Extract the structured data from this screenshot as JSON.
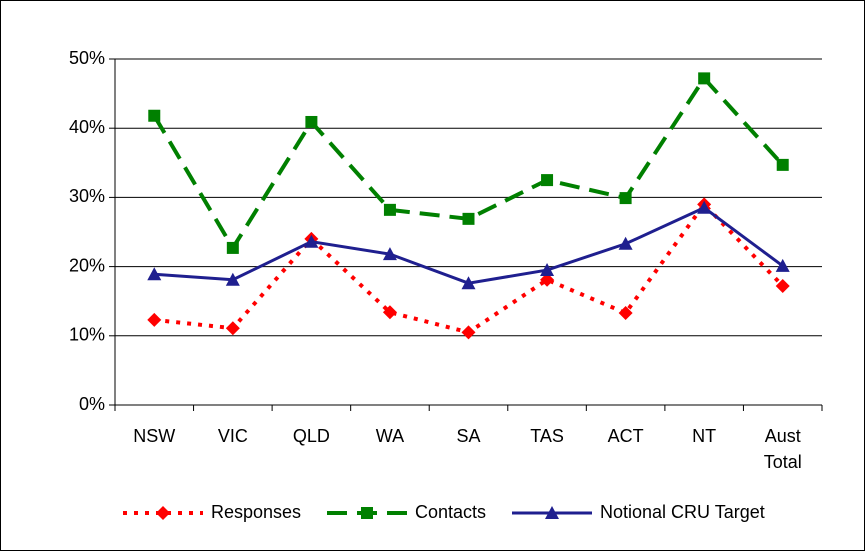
{
  "chart_data": {
    "type": "line",
    "categories": [
      "NSW",
      "VIC",
      "QLD",
      "WA",
      "SA",
      "TAS",
      "ACT",
      "NT",
      "Aust Total"
    ],
    "series": [
      {
        "name": "Responses",
        "color": "#ff0000",
        "marker": "diamond",
        "line_style": "dotted",
        "values": [
          12.3,
          11.1,
          24.0,
          13.4,
          10.5,
          18.1,
          13.3,
          29.0,
          17.2
        ]
      },
      {
        "name": "Contacts",
        "color": "#008000",
        "marker": "square",
        "line_style": "dashed",
        "values": [
          41.8,
          22.7,
          40.9,
          28.2,
          26.9,
          32.5,
          29.9,
          47.2,
          34.7
        ]
      },
      {
        "name": "Notional CRU Target",
        "color": "#1f1f8f",
        "marker": "triangle",
        "line_style": "solid",
        "values": [
          18.9,
          18.1,
          23.6,
          21.8,
          17.6,
          19.5,
          23.3,
          28.5,
          20.1
        ]
      }
    ],
    "ylim": [
      0,
      50
    ],
    "yticks": [
      {
        "value": 0,
        "label": "0%"
      },
      {
        "value": 10,
        "label": "10%"
      },
      {
        "value": 20,
        "label": "20%"
      },
      {
        "value": 30,
        "label": "30%"
      },
      {
        "value": 40,
        "label": "40%"
      },
      {
        "value": 50,
        "label": "50%"
      }
    ],
    "grid": true,
    "legend": "bottom"
  }
}
